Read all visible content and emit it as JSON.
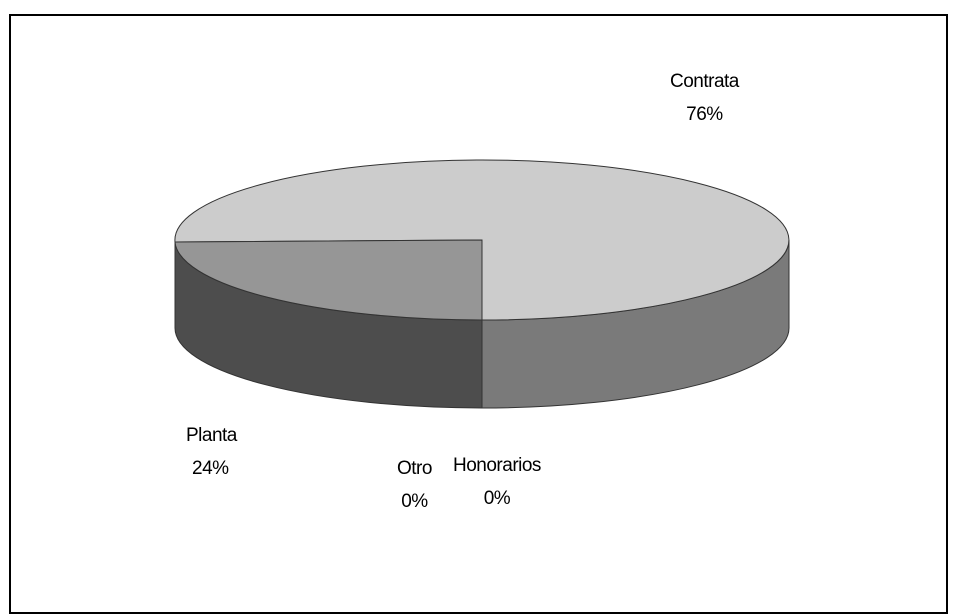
{
  "chart_data": {
    "type": "pie",
    "style": "3d",
    "slices": [
      {
        "name": "Contrata",
        "value": 76,
        "label": "76%",
        "color": "#cccccc"
      },
      {
        "name": "Planta",
        "value": 24,
        "label": "24%",
        "color": "#969696"
      },
      {
        "name": "Otro",
        "value": 0,
        "label": "0%",
        "color": "#000000"
      },
      {
        "name": "Honorarios",
        "value": 0,
        "label": "0%",
        "color": "#000000"
      }
    ],
    "side_colors": {
      "Contrata": "#7a7a7a",
      "Planta": "#4d4d4d"
    },
    "legend": "none"
  }
}
